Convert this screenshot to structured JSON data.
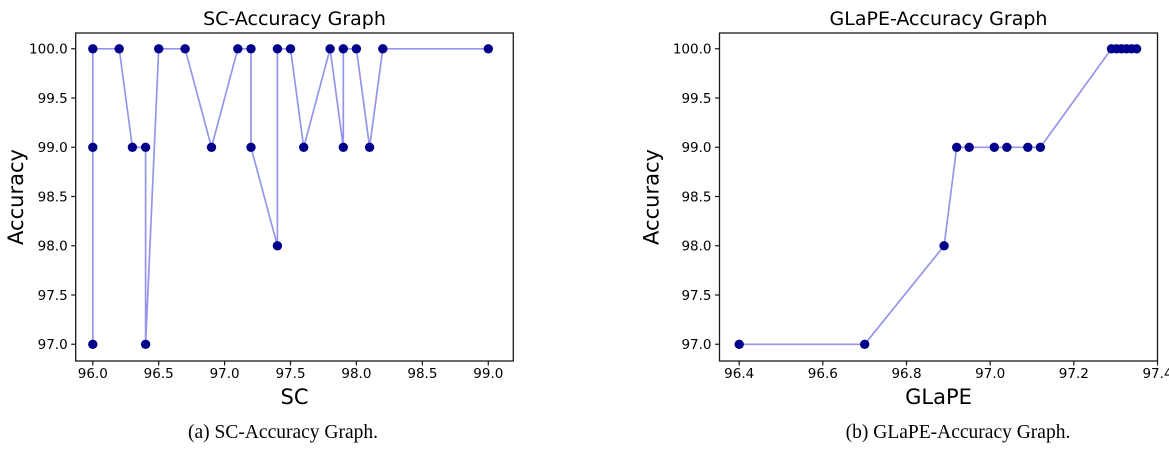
{
  "figure": {
    "background_color": "#ffffff",
    "line_color": "#9595ea",
    "dot_color": "#00008b",
    "axis_color": "#1a1a1a",
    "text_color": "#000000"
  },
  "captions": {
    "a": "(a) SC-Accuracy Graph.",
    "b": "(b) GLaPE-Accuracy Graph."
  },
  "chart_data": [
    {
      "type": "line",
      "title": "SC-Accuracy Graph",
      "xlabel": "SC",
      "ylabel": "Accuracy",
      "xlim": [
        95.87,
        99.19
      ],
      "ylim": [
        96.83,
        100.16
      ],
      "xticks": [
        96.0,
        96.5,
        97.0,
        97.5,
        98.0,
        98.5,
        99.0
      ],
      "yticks": [
        97.0,
        97.5,
        98.0,
        98.5,
        99.0,
        99.5,
        100.0
      ],
      "grid": false,
      "legend": null,
      "points": [
        [
          96.0,
          97.0
        ],
        [
          96.0,
          99.0
        ],
        [
          96.0,
          100.0
        ],
        [
          96.2,
          100.0
        ],
        [
          96.3,
          99.0
        ],
        [
          96.4,
          99.0
        ],
        [
          96.4,
          97.0
        ],
        [
          96.5,
          100.0
        ],
        [
          96.7,
          100.0
        ],
        [
          96.9,
          99.0
        ],
        [
          97.1,
          100.0
        ],
        [
          97.2,
          100.0
        ],
        [
          97.2,
          99.0
        ],
        [
          97.4,
          98.0
        ],
        [
          97.4,
          100.0
        ],
        [
          97.5,
          100.0
        ],
        [
          97.6,
          99.0
        ],
        [
          97.8,
          100.0
        ],
        [
          97.9,
          99.0
        ],
        [
          97.9,
          100.0
        ],
        [
          98.0,
          100.0
        ],
        [
          98.1,
          99.0
        ],
        [
          98.2,
          100.0
        ],
        [
          99.0,
          100.0
        ]
      ]
    },
    {
      "type": "line",
      "title": "GLaPE-Accuracy Graph",
      "xlabel": "GLaPE",
      "ylabel": "Accuracy",
      "xlim": [
        96.353,
        97.4
      ],
      "ylim": [
        96.83,
        100.16
      ],
      "xticks": [
        96.4,
        96.6,
        96.8,
        97.0,
        97.2,
        97.4
      ],
      "yticks": [
        97.0,
        97.5,
        98.0,
        98.5,
        99.0,
        99.5,
        100.0
      ],
      "grid": false,
      "legend": null,
      "points": [
        [
          96.4,
          97.0
        ],
        [
          96.7,
          97.0
        ],
        [
          96.89,
          98.0
        ],
        [
          96.92,
          99.0
        ],
        [
          96.95,
          99.0
        ],
        [
          97.01,
          99.0
        ],
        [
          97.04,
          99.0
        ],
        [
          97.09,
          99.0
        ],
        [
          97.12,
          99.0
        ],
        [
          97.29,
          100.0
        ],
        [
          97.302,
          100.0
        ],
        [
          97.314,
          100.0
        ],
        [
          97.326,
          100.0
        ],
        [
          97.338,
          100.0
        ],
        [
          97.35,
          100.0
        ]
      ]
    }
  ]
}
